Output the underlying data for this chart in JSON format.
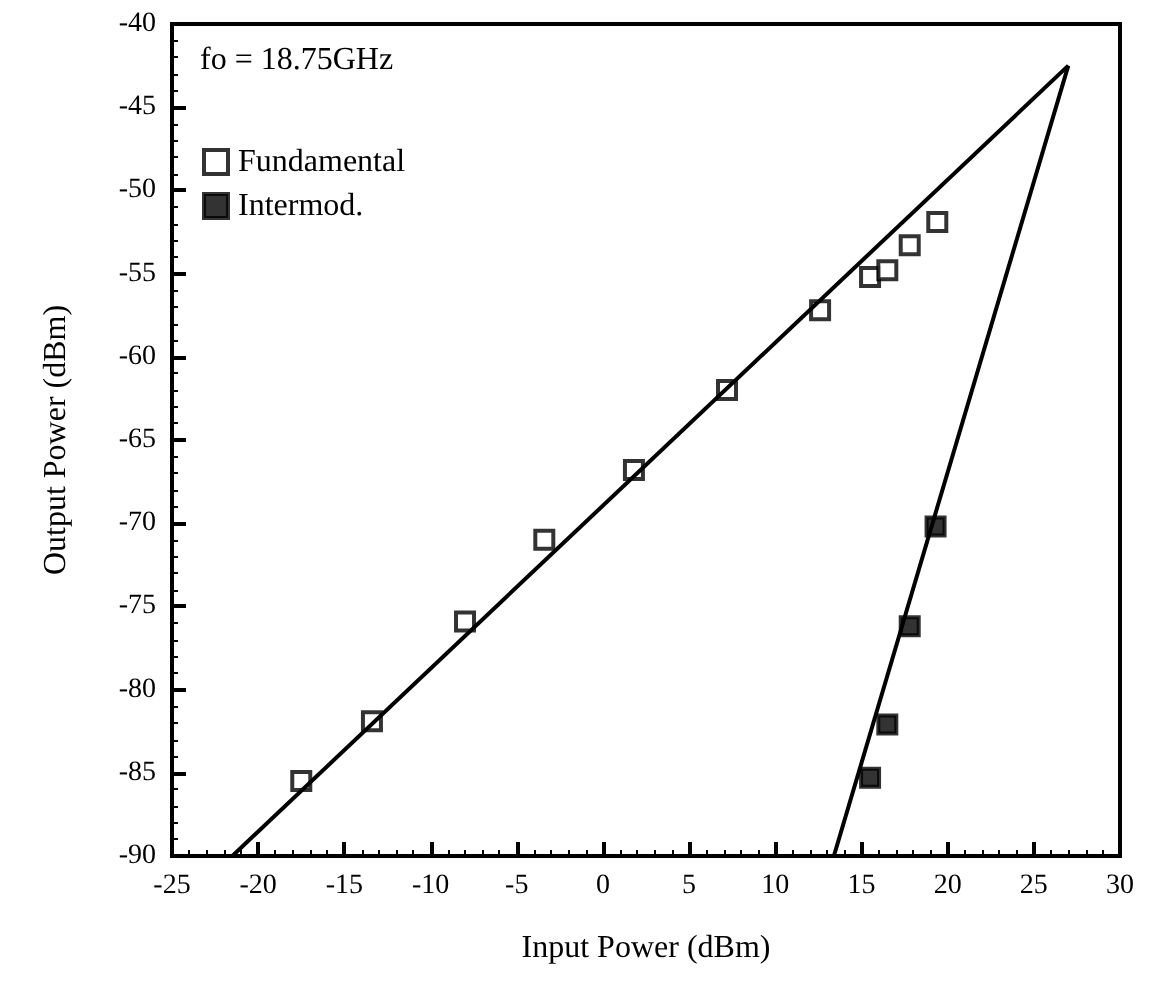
{
  "chart_data": {
    "type": "scatter",
    "xlabel": "Input Power (dBm)",
    "ylabel": "Output Power (dBm)",
    "annotations": [
      "fo = 18.75GHz"
    ],
    "series": [
      {
        "name": "Fundamental",
        "color": "#000000",
        "x": [
          -17.5,
          -13.4,
          -8.0,
          -3.4,
          1.8,
          7.2,
          12.6,
          15.5,
          16.5,
          17.8,
          19.4
        ],
        "values": [
          -85.5,
          -81.9,
          -75.9,
          -71.0,
          -66.8,
          -62.0,
          -57.2,
          -55.2,
          -54.8,
          -53.3,
          -51.9
        ]
      },
      {
        "name": "Intermod.",
        "color": "#000000",
        "x": [
          15.5,
          16.5,
          17.8,
          19.3
        ],
        "values": [
          -85.3,
          -82.1,
          -76.2,
          -70.2
        ]
      },
      {
        "type": "line",
        "marker": "none",
        "color": "#000000",
        "x": [
          -21.5,
          27
        ],
        "values": [
          -90,
          -42.5
        ]
      },
      {
        "type": "line",
        "marker": "none",
        "color": "#000000",
        "x": [
          13.4,
          27
        ],
        "values": [
          -90,
          -42.5
        ]
      }
    ],
    "xlim": [
      -25,
      30
    ],
    "xticks": [
      -25,
      -20,
      -15,
      -10,
      -5,
      0,
      5,
      10,
      15,
      20,
      25,
      30
    ],
    "ylim": [
      -90,
      -40
    ],
    "yticks": [
      -90,
      -85,
      -80,
      -75,
      -70,
      -65,
      -60,
      -55,
      -50,
      -45,
      -40
    ],
    "marker": "square",
    "legend": "top left",
    "grid": false
  }
}
